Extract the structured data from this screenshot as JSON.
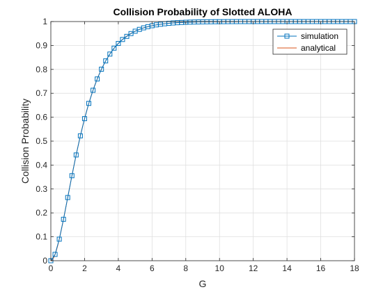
{
  "chart_data": {
    "type": "line",
    "title": "Collision Probability of Slotted ALOHA",
    "xlabel": "G",
    "ylabel": "Collision Probability",
    "xlim": [
      0,
      18
    ],
    "ylim": [
      0,
      1
    ],
    "xticks": [
      0,
      2,
      4,
      6,
      8,
      10,
      12,
      14,
      16,
      18
    ],
    "yticks": [
      0,
      0.1,
      0.2,
      0.3,
      0.4,
      0.5,
      0.6,
      0.7,
      0.8,
      0.9,
      1
    ],
    "xtick_labels": [
      "0",
      "2",
      "4",
      "6",
      "8",
      "10",
      "12",
      "14",
      "16",
      "18"
    ],
    "ytick_labels": [
      "0",
      "0.1",
      "0.2",
      "0.3",
      "0.4",
      "0.5",
      "0.6",
      "0.7",
      "0.8",
      "0.9",
      "1"
    ],
    "grid": true,
    "legend_position": "top-right",
    "series": [
      {
        "name": "simulation",
        "style": "line-with-square-markers",
        "color": "#0072BD",
        "x_start": 0,
        "x_step": 0.25,
        "values": [
          0,
          0.0265,
          0.0902,
          0.1733,
          0.2642,
          0.3554,
          0.4422,
          0.5221,
          0.594,
          0.6578,
          0.7127,
          0.7599,
          0.8009,
          0.8355,
          0.8641,
          0.8888,
          0.9084,
          0.925,
          0.938,
          0.9497,
          0.9596,
          0.9673,
          0.9737,
          0.9787,
          0.9826,
          0.9861,
          0.9887,
          0.9908,
          0.9927,
          0.9941,
          0.9952,
          0.9962,
          0.997,
          0.9976,
          0.9981,
          0.9985,
          0.9988,
          0.999,
          0.9992,
          0.9994,
          0.9995,
          0.9996,
          0.9997,
          0.9998,
          0.9998,
          0.9999,
          0.9999,
          0.9999,
          0.9999,
          1,
          1,
          1,
          1,
          1,
          1,
          1,
          1,
          1,
          1,
          1,
          1,
          1,
          1,
          1,
          1,
          1,
          1,
          1,
          1,
          1,
          1,
          1,
          1
        ]
      },
      {
        "name": "analytical",
        "style": "line",
        "color": "#D95319",
        "formula": "1 - exp(-G) - G*exp(-G)"
      }
    ]
  }
}
